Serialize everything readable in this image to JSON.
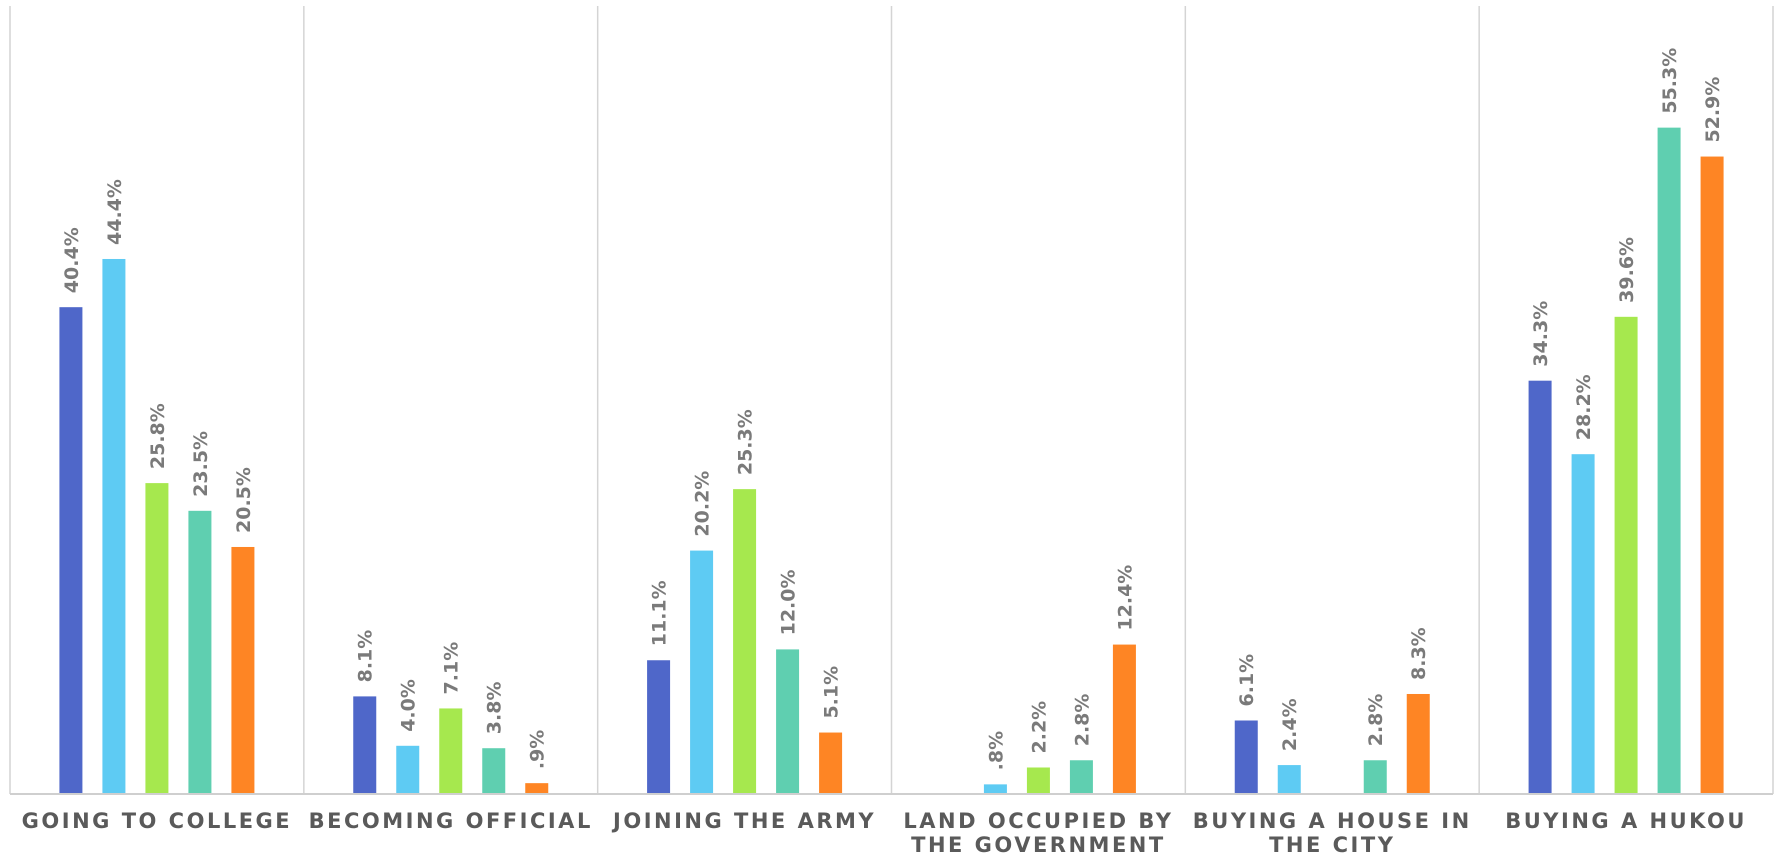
{
  "chart_data": {
    "type": "bar",
    "title": "",
    "xlabel": "",
    "ylabel": "",
    "ylim": [
      0,
      60
    ],
    "grid": false,
    "legend": "none",
    "categories": [
      [
        "GOING TO COLLEGE"
      ],
      [
        "BECOMING OFFICIAL"
      ],
      [
        "JOINING THE ARMY"
      ],
      [
        "LAND OCCUPIED BY",
        "THE GOVERNMENT"
      ],
      [
        "BUYING A HOUSE IN",
        "THE CITY"
      ],
      [
        "BUYING A HUKOU"
      ]
    ],
    "series": [
      {
        "color": "#4f67c9",
        "values": [
          40.4,
          8.1,
          11.1,
          null,
          6.1,
          34.3
        ],
        "labels": [
          "40.4%",
          "8.1%",
          "11.1%",
          "",
          "6.1%",
          "34.3%"
        ]
      },
      {
        "color": "#5ecbf3",
        "values": [
          44.4,
          4.0,
          20.2,
          0.8,
          2.4,
          28.2
        ],
        "labels": [
          "44.4%",
          "4.0%",
          "20.2%",
          ".8%",
          "2.4%",
          "28.2%"
        ]
      },
      {
        "color": "#a6e84e",
        "values": [
          25.8,
          7.1,
          25.3,
          2.2,
          null,
          39.6
        ],
        "labels": [
          "25.8%",
          "7.1%",
          "25.3%",
          "2.2%",
          "",
          "39.6%"
        ]
      },
      {
        "color": "#5fcfb0",
        "values": [
          23.5,
          3.8,
          12.0,
          2.8,
          2.8,
          55.3
        ],
        "labels": [
          "23.5%",
          "3.8%",
          "12.0%",
          "2.8%",
          "2.8%",
          "55.3%"
        ]
      },
      {
        "color": "#fe8524",
        "values": [
          20.5,
          0.9,
          5.1,
          12.4,
          8.3,
          52.9
        ],
        "labels": [
          "20.5%",
          ".9%",
          "5.1%",
          "12.4%",
          "8.3%",
          "52.9%"
        ]
      }
    ]
  }
}
